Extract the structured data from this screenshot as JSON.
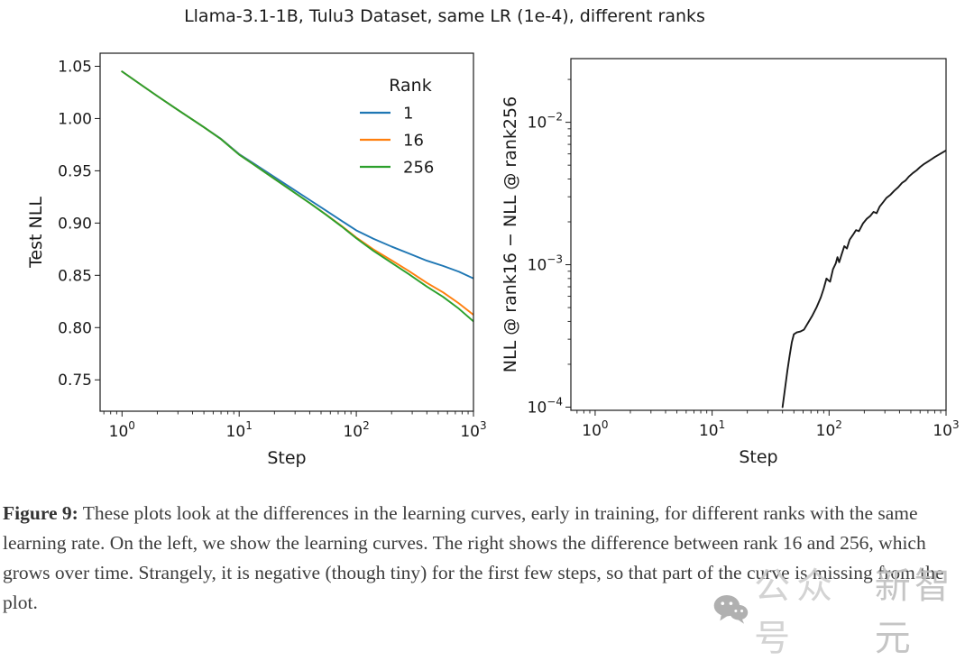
{
  "figure": {
    "title": "Llama-3.1-1B, Tulu3 Dataset, same LR (1e-4), different ranks"
  },
  "caption": {
    "label": "Figure 9:",
    "text": " These plots look at the differences in the learning curves, early in training, for different ranks with the same learning rate. On the left, we show the learning curves. The right shows the difference between rank 16 and 256, which grows over time. Strangely, it is negative (though tiny) for the first few steps, so that part of the curve is missing from the plot."
  },
  "watermark": {
    "icon": "wechat-chat-bubbles-icon",
    "text1": "公众号",
    "text2": "新智元"
  },
  "chart_data": [
    {
      "type": "line",
      "title": "",
      "xlabel": "Step",
      "ylabel": "Test NLL",
      "xscale": "log",
      "yscale": "linear",
      "xlim": [
        0.65,
        1000
      ],
      "ylim": [
        0.72,
        1.0625
      ],
      "xtick_exponents": [
        0,
        1,
        2,
        3
      ],
      "yticks": [
        0.75,
        0.8,
        0.85,
        0.9,
        0.95,
        1.0,
        1.05
      ],
      "grid": false,
      "legend": {
        "title": "Rank",
        "position": "upper right"
      },
      "x": [
        1,
        1.5,
        2,
        3,
        4,
        5,
        7,
        10,
        13,
        17,
        22,
        30,
        40,
        55,
        75,
        100,
        140,
        200,
        280,
        400,
        550,
        750,
        1000
      ],
      "series": [
        {
          "name": "1",
          "color": "#1f77b4",
          "values": [
            1.045,
            1.0312,
            1.0215,
            1.0082,
            0.9989,
            0.9917,
            0.9806,
            0.966,
            0.9577,
            0.9492,
            0.941,
            0.9312,
            0.9221,
            0.912,
            0.9021,
            0.893,
            0.885,
            0.8775,
            0.871,
            0.864,
            0.859,
            0.8535,
            0.847
          ]
        },
        {
          "name": "16",
          "color": "#ff7f0e",
          "values": [
            1.045,
            1.0312,
            1.0215,
            1.0082,
            0.9989,
            0.9917,
            0.9803,
            0.9655,
            0.9568,
            0.9478,
            0.9392,
            0.9288,
            0.9192,
            0.9083,
            0.8972,
            0.8862,
            0.8748,
            0.8643,
            0.8542,
            0.8428,
            0.8337,
            0.8232,
            0.8122
          ]
        },
        {
          "name": "256",
          "color": "#2ca02c",
          "values": [
            1.045,
            1.0312,
            1.0215,
            1.0082,
            0.9989,
            0.9917,
            0.9802,
            0.9654,
            0.9567,
            0.9477,
            0.9391,
            0.9287,
            0.9191,
            0.908,
            0.8967,
            0.8854,
            0.8734,
            0.862,
            0.8512,
            0.8392,
            0.8294,
            0.8181,
            0.8059
          ]
        }
      ]
    },
    {
      "type": "line",
      "title": "",
      "xlabel": "Step",
      "ylabel": "NLL @ rank16 − NLL @ rank256",
      "xscale": "log",
      "yscale": "log",
      "xlim": [
        0.62,
        1000
      ],
      "ylim": [
        9.5e-05,
        0.028
      ],
      "xtick_exponents": [
        0,
        1,
        2,
        3
      ],
      "ytick_exponents": [
        -2,
        -3,
        -4
      ],
      "grid": false,
      "series": [
        {
          "name": "NLL difference (rank16 − rank256)",
          "color": "#1a1a1a",
          "x": [
            40,
            42,
            44,
            46,
            48,
            50,
            53,
            57,
            61,
            66,
            72,
            78,
            85,
            90,
            95,
            98,
            102,
            108,
            114,
            118,
            122,
            128,
            135,
            142,
            150,
            160,
            170,
            180,
            195,
            210,
            225,
            240,
            255,
            270,
            290,
            310,
            335,
            360,
            390,
            420,
            450,
            480,
            520,
            560,
            600,
            650,
            700,
            750,
            800,
            860,
            920,
            1000
          ],
          "values": [
            0.0001,
            0.000135,
            0.00018,
            0.00023,
            0.000285,
            0.000325,
            0.000335,
            0.00034,
            0.00035,
            0.00039,
            0.00044,
            0.0005,
            0.00059,
            0.00068,
            0.0008,
            0.00078,
            0.00076,
            0.00093,
            0.00102,
            0.00113,
            0.00104,
            0.00118,
            0.00135,
            0.0013,
            0.0015,
            0.00162,
            0.00175,
            0.00172,
            0.00195,
            0.0021,
            0.0022,
            0.00235,
            0.0023,
            0.00255,
            0.00275,
            0.00295,
            0.0031,
            0.0033,
            0.0035,
            0.00375,
            0.0039,
            0.00415,
            0.0044,
            0.0046,
            0.00485,
            0.0051,
            0.0053,
            0.0055,
            0.0057,
            0.0059,
            0.0061,
            0.00635
          ]
        }
      ]
    }
  ]
}
